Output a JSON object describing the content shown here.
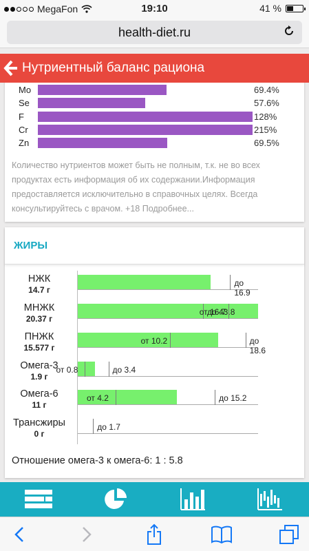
{
  "status": {
    "carrier": "MegaFon",
    "time": "19:10",
    "battery": "41 %",
    "battery_level": 0.41
  },
  "browser": {
    "url": "health-diet.ru"
  },
  "header": {
    "title": "Нутриентный баланс рациона"
  },
  "nutrients": [
    {
      "label": "Mo",
      "percent": "69.4%",
      "value": 69.4
    },
    {
      "label": "Se",
      "percent": "57.6%",
      "value": 57.6
    },
    {
      "label": "F",
      "percent": "128%",
      "value": 128
    },
    {
      "label": "Cr",
      "percent": "215%",
      "value": 215
    },
    {
      "label": "Zn",
      "percent": "69.5%",
      "value": 69.5
    }
  ],
  "note": "Количество нутриентов может быть не полным, т.к. не во всех продуктах есть информация об их содержании.Информация предоставляется исключительно в справочных целях. Всегда консультируйтесь с врачом. +18 Подробнее...",
  "fats": {
    "title": "ЖИРЫ",
    "scale_max": 20,
    "rows": [
      {
        "name": "НЖК",
        "value": "14.7 г",
        "amount": 14.7,
        "to_label": "до 16.9",
        "to": 16.9
      },
      {
        "name": "МНЖК",
        "value": "20.37 г",
        "amount": 20.37,
        "from_label": "от 16.7",
        "from": 16.7,
        "to_label": "до 43.8",
        "to": 43.8
      },
      {
        "name": "ПНЖК",
        "value": "15.577 г",
        "amount": 15.577,
        "from_label": "от 10.2",
        "from": 10.2,
        "to_label": "до 18.6",
        "to": 18.6
      },
      {
        "name": "Омега-3",
        "value": "1.9 г",
        "amount": 1.9,
        "from_label": "от 0.8",
        "from": 0.8,
        "to_label": "до 3.4",
        "to": 3.4
      },
      {
        "name": "Омега-6",
        "value": "11 г",
        "amount": 11,
        "from_label": "от 4.2",
        "from": 4.2,
        "to_label": "до 15.2",
        "to": 15.2
      },
      {
        "name": "Трансжиры",
        "value": "0 г",
        "amount": 0,
        "to_label": "до 1.7",
        "to": 1.7
      }
    ],
    "ratio": "Отношение омега-3 к омега-6: 1 : 5.8"
  },
  "tabs": [
    {
      "icon": "list-table-icon"
    },
    {
      "icon": "pie-chart-icon"
    },
    {
      "icon": "bar-chart-icon"
    },
    {
      "icon": "balance-chart-icon"
    }
  ],
  "safari": {
    "buttons": [
      "back-icon",
      "forward-icon",
      "share-icon",
      "bookmarks-icon",
      "tabs-icon"
    ]
  }
}
